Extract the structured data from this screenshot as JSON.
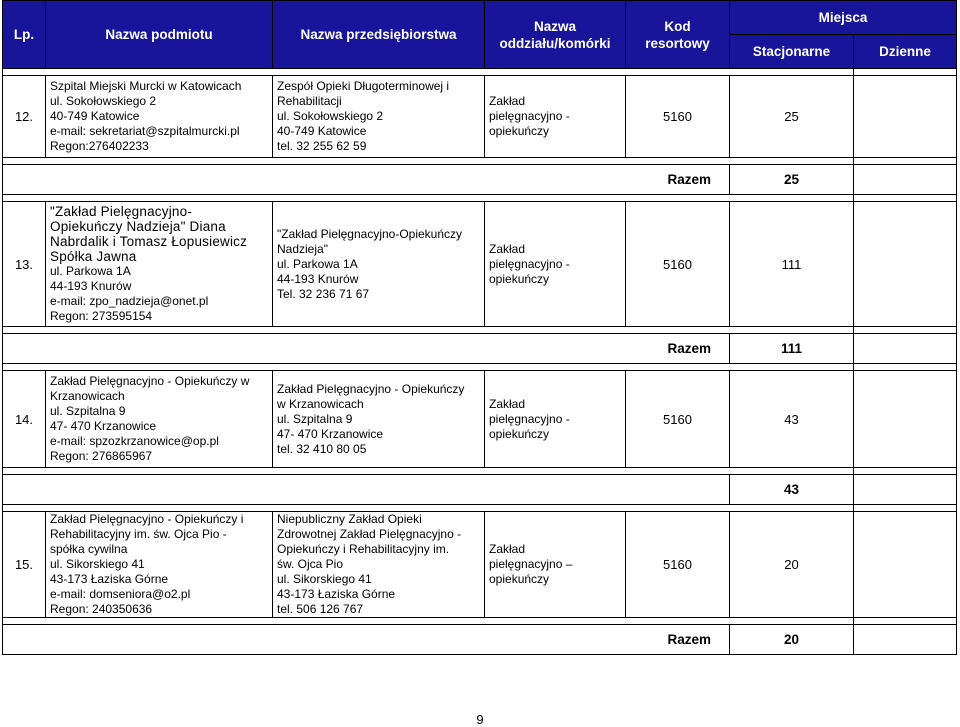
{
  "header": {
    "lp": "Lp.",
    "podmiot": "Nazwa podmiotu",
    "przedsiebiorstwo": "Nazwa przedsiębiorstwa",
    "oddzial_1": "Nazwa",
    "oddzial_2": "oddziału/komórki",
    "kod_1": "Kod",
    "kod_2": "resortowy",
    "miejsca": "Miejsca",
    "stacjonarne": "Stacjonarne",
    "dzienne": "Dzienne"
  },
  "rows": [
    {
      "lp": "12.",
      "podmiot": [
        "Szpital Miejski Murcki w Katowicach",
        "ul. Sokołowskiego 2",
        "40-749 Katowice",
        "e-mail:  sekretariat@szpitalmurcki.pl",
        "Regon:276402233"
      ],
      "przedsiebiorstwo": [
        "Zespół Opieki Długoterminowej i",
        "Rehabilitacji",
        "ul. Sokołowskiego 2",
        "40-749 Katowice",
        "tel. 32 255 62 59"
      ],
      "oddzial": [
        "Zakład",
        "pielęgnacyjno -",
        "opiekuńczy"
      ],
      "kod": "5160",
      "stacjonarne": "25",
      "dzienne": "",
      "razem_label": "Razem",
      "razem_value": "25"
    },
    {
      "lp": "13.",
      "podmiot": [
        "\"Zakład Pielęgnacyjno-",
        "Opiekuńczy Nadzieja\" Diana",
        "Nabrdalik i Tomasz Łopusiewicz",
        "Spółka Jawna",
        "ul. Parkowa 1A",
        "44-193 Knurów",
        "e-mail:  zpo_nadzieja@onet.pl",
        "Regon: 273595154"
      ],
      "przedsiebiorstwo": [
        "\"Zakład Pielęgnacyjno-Opiekuńczy",
        "Nadzieja\"",
        "ul. Parkowa 1A",
        "44-193 Knurów",
        "Tel. 32 236 71 67"
      ],
      "oddzial": [
        "Zakład",
        "pielęgnacyjno -",
        "opiekuńczy"
      ],
      "kod": "5160",
      "stacjonarne": "111",
      "dzienne": "",
      "razem_label": "Razem",
      "razem_value": "111"
    },
    {
      "lp": "14.",
      "podmiot": [
        "Zakład Pielęgnacyjno - Opiekuńczy w",
        "Krzanowicach",
        "ul. Szpitalna 9",
        "47- 470 Krzanowice",
        "e-mail:  spzozkrzanowice@op.pl",
        "Regon: 276865967"
      ],
      "przedsiebiorstwo": [
        "Zakład Pielęgnacyjno - Opiekuńczy",
        "w Krzanowicach",
        "ul. Szpitalna 9",
        "47- 470 Krzanowice",
        "tel. 32 410 80 05"
      ],
      "oddzial": [
        "Zakład",
        "pielęgnacyjno -",
        "opiekuńczy"
      ],
      "kod": "5160",
      "stacjonarne": "43",
      "dzienne": "",
      "razem_label": "",
      "razem_value": "43"
    },
    {
      "lp": "15.",
      "podmiot": [
        "Zakład Pielęgnacyjno - Opiekuńczy i",
        "Rehabilitacyjny im. św. Ojca Pio -",
        "spółka cywilna",
        "ul. Sikorskiego 41",
        "43-173 Łaziska Górne",
        "e-mail:  domseniora@o2.pl",
        "Regon: 240350636"
      ],
      "przedsiebiorstwo": [
        "Niepubliczny Zakład Opieki",
        "Zdrowotnej Zakład Pielęgnacyjno -",
        "Opiekuńczy i Rehabilitacyjny im.",
        "św. Ojca Pio",
        "ul. Sikorskiego 41",
        "43-173 Łaziska Górne",
        "tel. 506 126 767"
      ],
      "oddzial": [
        "Zakład",
        "pielęgnacyjno –",
        "opiekuńczy"
      ],
      "kod": "5160",
      "stacjonarne": "20",
      "dzienne": "",
      "razem_label": "Razem",
      "razem_value": "20"
    }
  ],
  "page_number": "9",
  "colors": {
    "header_bg": "#18159a",
    "header_text": "#ffffff"
  }
}
